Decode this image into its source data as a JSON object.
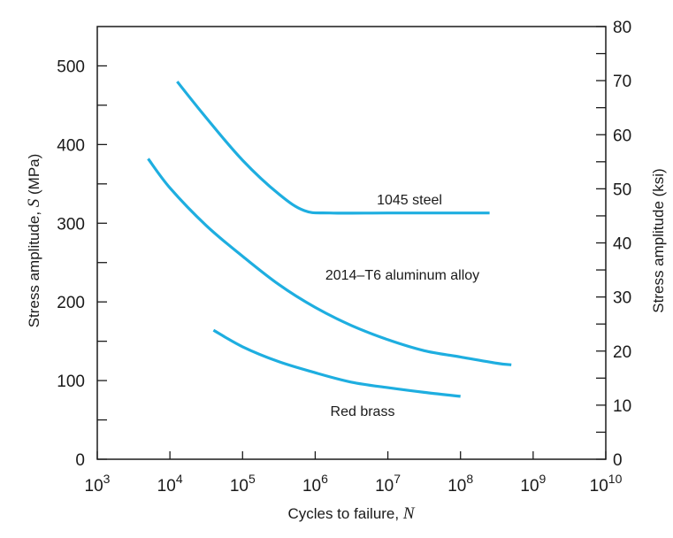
{
  "chart_data": {
    "type": "line",
    "title": "",
    "xlabel": "Cycles to failure, N",
    "xlabel_text": "Cycles to failure,",
    "xlabel_var": "N",
    "ylabel": "Stress amplitude, S (MPa)",
    "ylabel_text": "Stress amplitude,",
    "ylabel_var": "S",
    "ylabel_unit": "(MPa)",
    "ylabel_right": "Stress amplitude (ksi)",
    "x_scale": "log",
    "xlim": [
      1000,
      10000000000
    ],
    "ylim": [
      0,
      550
    ],
    "ylim_right": [
      0,
      80
    ],
    "x_ticks": [
      {
        "exp": 3,
        "base": "10",
        "sup": "3"
      },
      {
        "exp": 4,
        "base": "10",
        "sup": "4"
      },
      {
        "exp": 5,
        "base": "10",
        "sup": "5"
      },
      {
        "exp": 6,
        "base": "10",
        "sup": "6"
      },
      {
        "exp": 7,
        "base": "10",
        "sup": "7"
      },
      {
        "exp": 8,
        "base": "10",
        "sup": "8"
      },
      {
        "exp": 9,
        "base": "10",
        "sup": "9"
      },
      {
        "exp": 10,
        "base": "10",
        "sup": "10"
      }
    ],
    "y_ticks_left": [
      "0",
      "100",
      "200",
      "300",
      "400",
      "500"
    ],
    "y_ticks_right": [
      "0",
      "10",
      "20",
      "30",
      "40",
      "50",
      "60",
      "70",
      "80"
    ],
    "series": [
      {
        "name": "1045 steel",
        "color": "#1eaee0",
        "label_position": "above the plateau",
        "points": [
          [
            4.1,
            480
          ],
          [
            4.5,
            434
          ],
          [
            5.0,
            380
          ],
          [
            5.5,
            337
          ],
          [
            5.85,
            316
          ],
          [
            6.2,
            313
          ],
          [
            7.0,
            313
          ],
          [
            8.0,
            313
          ],
          [
            8.4,
            313
          ]
        ]
      },
      {
        "name": "2014–T6 aluminum alloy",
        "color": "#1eaee0",
        "label_position": "above the middle of the curve",
        "points": [
          [
            3.7,
            382
          ],
          [
            4.0,
            345
          ],
          [
            4.5,
            297
          ],
          [
            5.0,
            258
          ],
          [
            5.5,
            222
          ],
          [
            6.0,
            193
          ],
          [
            6.5,
            170
          ],
          [
            7.0,
            152
          ],
          [
            7.5,
            138
          ],
          [
            8.0,
            130
          ],
          [
            8.5,
            122
          ],
          [
            8.7,
            120
          ]
        ]
      },
      {
        "name": "Red brass",
        "color": "#1eaee0",
        "label_position": "below the curve",
        "points": [
          [
            4.6,
            164
          ],
          [
            5.0,
            143
          ],
          [
            5.5,
            124
          ],
          [
            6.0,
            110
          ],
          [
            6.5,
            98
          ],
          [
            7.0,
            91
          ],
          [
            7.5,
            85
          ],
          [
            8.0,
            80
          ]
        ]
      }
    ]
  }
}
